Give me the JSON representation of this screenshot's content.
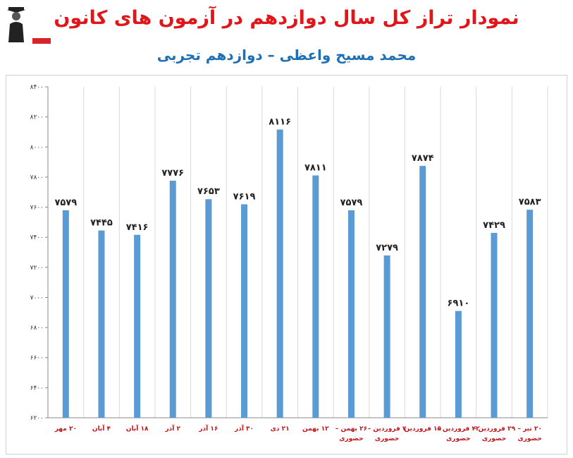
{
  "header": {
    "title": "نمودار تراز کل سال دوازدهم در آزمون های کانون",
    "subtitle": "محمد مسیح واعظی – دوازدهم تجربی"
  },
  "colors": {
    "bar": "#5b9bd5",
    "title": "#e0161b",
    "subtitle": "#1f6fb5",
    "tick_label": "#c0171d",
    "grid": "#d9d9d9"
  },
  "chart_data": {
    "type": "bar",
    "title": "نمودار تراز کل سال دوازدهم در آزمون های کانون",
    "subtitle": "محمد مسیح واعظی – دوازدهم تجربی",
    "xlabel": "",
    "ylabel": "",
    "ylim": [
      6200,
      8400
    ],
    "yticks": [
      6200,
      6400,
      6600,
      6800,
      7000,
      7200,
      7400,
      7600,
      7800,
      8000,
      8200,
      8400
    ],
    "ytick_labels": [
      "۶۲۰۰",
      "۶۴۰۰",
      "۶۶۰۰",
      "۶۸۰۰",
      "۷۰۰۰",
      "۷۲۰۰",
      "۷۴۰۰",
      "۷۶۰۰",
      "۷۸۰۰",
      "۸۰۰۰",
      "۸۲۰۰",
      "۸۴۰۰"
    ],
    "grid": "vertical",
    "legend": "none",
    "categories": [
      [
        "۲۰ مهر"
      ],
      [
        "۴ آبان"
      ],
      [
        "۱۸ آبان"
      ],
      [
        "۲ آذر"
      ],
      [
        "۱۶ آذر"
      ],
      [
        "۳۰ آذر"
      ],
      [
        "۲۱ دی"
      ],
      [
        "۱۲ بهمن"
      ],
      [
        "۲۶ بهمن –",
        "حضوری"
      ],
      [
        "۷ فروردین –",
        "حضوری"
      ],
      [
        "۱۵ فروردین"
      ],
      [
        "۲۲ فروردین –",
        "حضوری"
      ],
      [
        "۲۹ فروردین –",
        "حضوری"
      ],
      [
        "۲۰ تیر –",
        "حضوری"
      ]
    ],
    "values": [
      7579,
      7445,
      7416,
      7776,
      7653,
      7619,
      8116,
      7811,
      7579,
      7279,
      7874,
      6910,
      7429,
      7583
    ],
    "value_labels": [
      "۷۵۷۹",
      "۷۴۴۵",
      "۷۴۱۶",
      "۷۷۷۶",
      "۷۶۵۳",
      "۷۶۱۹",
      "۸۱۱۶",
      "۷۸۱۱",
      "۷۵۷۹",
      "۷۲۷۹",
      "۷۸۷۴",
      "۶۹۱۰",
      "۷۴۲۹",
      "۷۵۸۳"
    ]
  }
}
